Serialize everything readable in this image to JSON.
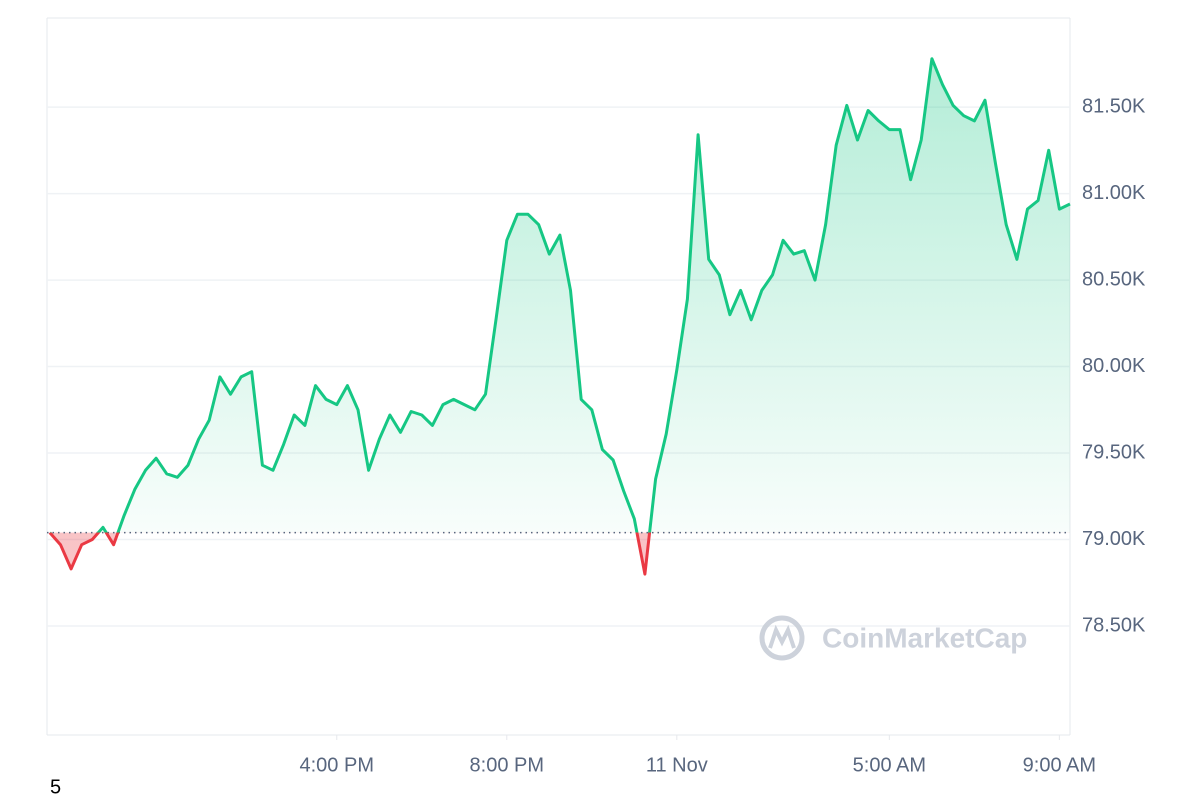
{
  "chart_data": {
    "type": "line",
    "x": [
      "10 Nov 09:15",
      "10 Nov 09:30",
      "10 Nov 09:45",
      "10 Nov 10:00",
      "10 Nov 10:15",
      "10 Nov 10:30",
      "10 Nov 10:45",
      "10 Nov 11:00",
      "10 Nov 11:15",
      "10 Nov 11:30",
      "10 Nov 11:45",
      "10 Nov 12:00",
      "10 Nov 12:15",
      "10 Nov 12:30",
      "10 Nov 12:45",
      "10 Nov 13:00",
      "10 Nov 13:15",
      "10 Nov 13:30",
      "10 Nov 13:45",
      "10 Nov 14:00",
      "10 Nov 14:15",
      "10 Nov 14:30",
      "10 Nov 14:45",
      "10 Nov 15:00",
      "10 Nov 15:15",
      "10 Nov 15:30",
      "10 Nov 15:45",
      "10 Nov 16:00",
      "10 Nov 16:15",
      "10 Nov 16:30",
      "10 Nov 16:45",
      "10 Nov 17:00",
      "10 Nov 17:15",
      "10 Nov 17:30",
      "10 Nov 17:45",
      "10 Nov 18:00",
      "10 Nov 18:15",
      "10 Nov 18:30",
      "10 Nov 18:45",
      "10 Nov 19:00",
      "10 Nov 19:15",
      "10 Nov 19:30",
      "10 Nov 19:45",
      "10 Nov 20:00",
      "10 Nov 20:15",
      "10 Nov 20:30",
      "10 Nov 20:45",
      "10 Nov 21:00",
      "10 Nov 21:15",
      "10 Nov 21:30",
      "10 Nov 21:45",
      "10 Nov 22:00",
      "10 Nov 22:15",
      "10 Nov 22:30",
      "10 Nov 22:45",
      "10 Nov 23:00",
      "10 Nov 23:15",
      "10 Nov 23:30",
      "10 Nov 23:45",
      "11 Nov 00:00",
      "11 Nov 00:15",
      "11 Nov 00:30",
      "11 Nov 00:45",
      "11 Nov 01:00",
      "11 Nov 01:15",
      "11 Nov 01:30",
      "11 Nov 01:45",
      "11 Nov 02:00",
      "11 Nov 02:15",
      "11 Nov 02:30",
      "11 Nov 02:45",
      "11 Nov 03:00",
      "11 Nov 03:15",
      "11 Nov 03:30",
      "11 Nov 03:45",
      "11 Nov 04:00",
      "11 Nov 04:15",
      "11 Nov 04:30",
      "11 Nov 04:45",
      "11 Nov 05:00",
      "11 Nov 05:15",
      "11 Nov 05:30",
      "11 Nov 05:45",
      "11 Nov 06:00",
      "11 Nov 06:15",
      "11 Nov 06:30",
      "11 Nov 06:45",
      "11 Nov 07:00",
      "11 Nov 07:15",
      "11 Nov 07:30",
      "11 Nov 07:45",
      "11 Nov 08:00",
      "11 Nov 08:15",
      "11 Nov 08:30",
      "11 Nov 08:45",
      "11 Nov 09:00",
      "11 Nov 09:15"
    ],
    "values": [
      79040,
      78970,
      78830,
      78970,
      79000,
      79070,
      78970,
      79140,
      79290,
      79400,
      79470,
      79380,
      79360,
      79430,
      79580,
      79690,
      79940,
      79840,
      79940,
      79970,
      79430,
      79400,
      79550,
      79720,
      79660,
      79890,
      79810,
      79780,
      79890,
      79750,
      79400,
      79580,
      79720,
      79620,
      79740,
      79720,
      79660,
      79780,
      79810,
      79780,
      79750,
      79840,
      80280,
      80730,
      80880,
      80880,
      80820,
      80650,
      80760,
      80440,
      79810,
      79750,
      79520,
      79460,
      79280,
      79120,
      78800,
      79350,
      79610,
      79980,
      80390,
      81340,
      80620,
      80530,
      80300,
      80440,
      80270,
      80440,
      80530,
      80730,
      80650,
      80670,
      80500,
      80820,
      81280,
      81510,
      81310,
      81480,
      81420,
      81370,
      81370,
      81080,
      81310,
      81780,
      81630,
      81510,
      81450,
      81420,
      81540,
      81170,
      80820,
      80620,
      80910,
      80960,
      81250,
      80910,
      80940
    ],
    "color": "#16c784",
    "down_color": "#ea3943",
    "xlim": [
      "10 Nov 09:11",
      "11 Nov 09:15"
    ],
    "xticks": [
      {
        "value": "10 Nov 16:00",
        "label": "4:00 PM"
      },
      {
        "value": "10 Nov 20:00",
        "label": "8:00 PM"
      },
      {
        "value": "11 Nov 00:00",
        "label": "11 Nov"
      },
      {
        "value": "11 Nov 05:00",
        "label": "5:00 AM"
      },
      {
        "value": "11 Nov 09:00",
        "label": "9:00 AM"
      }
    ],
    "ylim": [
      77870,
      82015
    ],
    "yticks": [
      {
        "value": 78500,
        "label": "78.50K"
      },
      {
        "value": 79000,
        "label": "79.00K"
      },
      {
        "value": 79500,
        "label": "79.50K"
      },
      {
        "value": 80000,
        "label": "80.00K"
      },
      {
        "value": 80500,
        "label": "80.50K"
      },
      {
        "value": 81000,
        "label": "81.00K"
      },
      {
        "value": 81500,
        "label": "81.50K"
      }
    ],
    "grid": true,
    "watermark": "CoinMarketCap"
  },
  "page_note": "5"
}
